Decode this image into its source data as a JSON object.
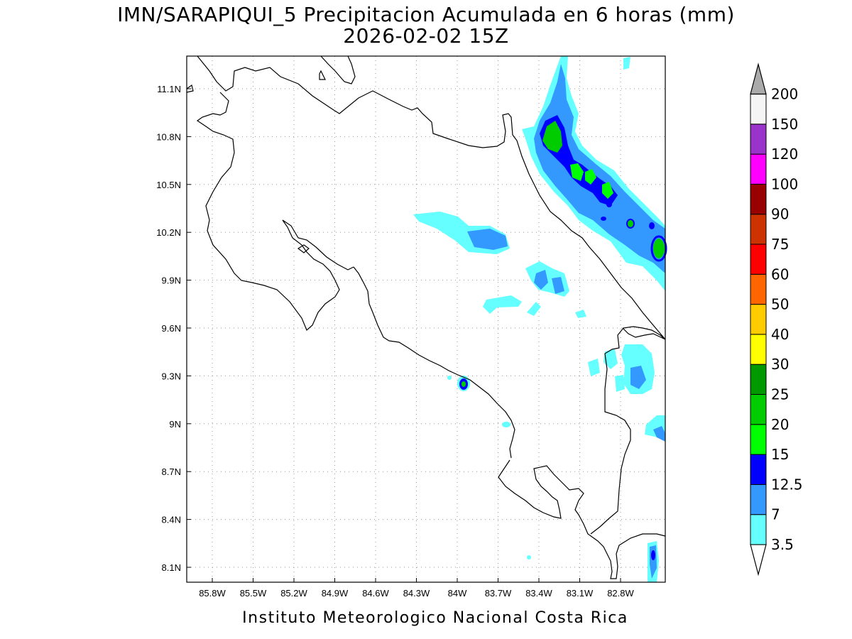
{
  "title_line1": "IMN/SARAPIQUI_5 Precipitacion Acumulada en 6 horas (mm)",
  "title_line2": "2026-02-02 15Z",
  "footer": "Instituto Meteorologico Nacional Costa Rica",
  "lon_ticks": [
    "85.8W",
    "85.5W",
    "85.2W",
    "84.9W",
    "84.6W",
    "84.3W",
    "84W",
    "83.7W",
    "83.4W",
    "83.1W",
    "82.8W"
  ],
  "lat_ticks": [
    "11.1N",
    "10.8N",
    "10.5N",
    "10.2N",
    "9.9N",
    "9.6N",
    "9.3N",
    "9N",
    "8.7N",
    "8.4N",
    "8.1N"
  ],
  "colorbar": [
    {
      "label": "3.5",
      "color": "#66ffff"
    },
    {
      "label": "7",
      "color": "#3399ff"
    },
    {
      "label": "12.5",
      "color": "#0000ff"
    },
    {
      "label": "15",
      "color": "#00ff00"
    },
    {
      "label": "20",
      "color": "#00cc00"
    },
    {
      "label": "25",
      "color": "#009900"
    },
    {
      "label": "30",
      "color": "#ffff00"
    },
    {
      "label": "40",
      "color": "#ffcc00"
    },
    {
      "label": "50",
      "color": "#ff6600"
    },
    {
      "label": "60",
      "color": "#ff0000"
    },
    {
      "label": "75",
      "color": "#cc3300"
    },
    {
      "label": "90",
      "color": "#990000"
    },
    {
      "label": "100",
      "color": "#ff00ff"
    },
    {
      "label": "120",
      "color": "#9933cc"
    },
    {
      "label": "150",
      "color": "#f5f5f5"
    },
    {
      "label": "200",
      "color": "#aaaaaa"
    }
  ]
}
